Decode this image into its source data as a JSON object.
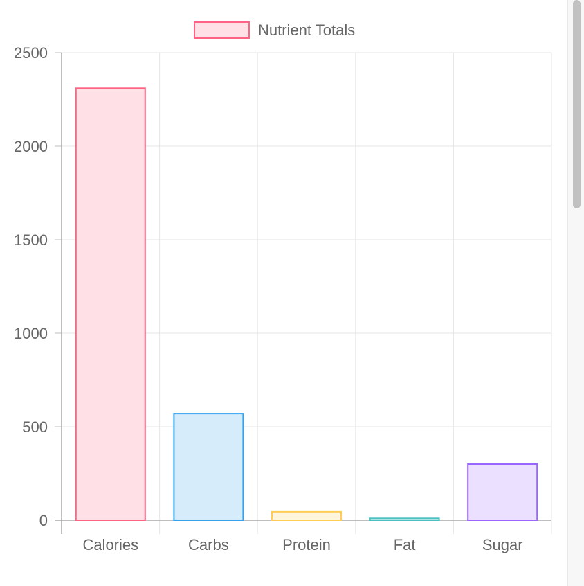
{
  "chart_data": {
    "type": "bar",
    "categories": [
      "Calories",
      "Carbs",
      "Protein",
      "Fat",
      "Sugar"
    ],
    "series": [
      {
        "name": "Nutrient Totals",
        "values": [
          2310,
          570,
          45,
          10,
          300
        ],
        "fill_colors": [
          "#ffe0e6",
          "#d7ecfb",
          "#fff5dd",
          "#dbf2f2",
          "#ebe0ff"
        ],
        "border_colors": [
          "#ff6384",
          "#36a2eb",
          "#ffcd56",
          "#4bc0c0",
          "#9966ff"
        ]
      }
    ],
    "yticks": [
      "0",
      "500",
      "1000",
      "1500",
      "2000",
      "2500"
    ],
    "ylim": [
      0,
      2500
    ],
    "grid": true,
    "legend_position": "top"
  }
}
